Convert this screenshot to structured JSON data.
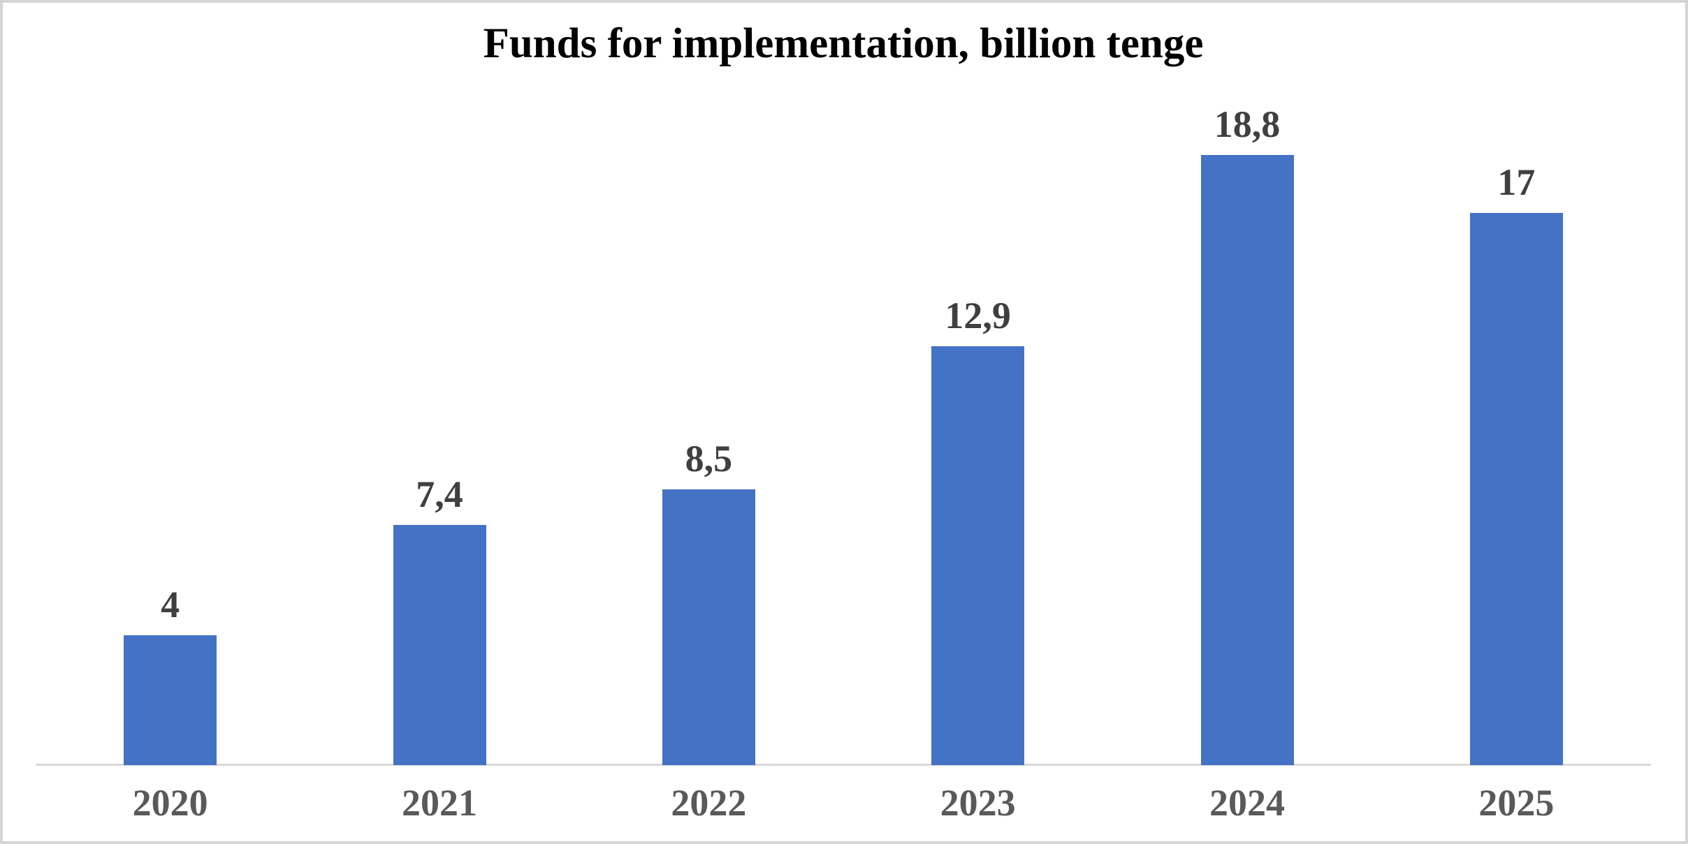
{
  "title": "Funds for implementation, billion tenge",
  "colors": {
    "bar": "#4472C4",
    "axis_line": "#D9D9D9",
    "frame_border": "#D5D5D5",
    "title_text": "#000000",
    "data_label_text": "#3F3F3F",
    "axis_label_text": "#595959",
    "background": "#FFFFFF"
  },
  "chart_data": {
    "type": "bar",
    "title": "Funds for implementation, billion tenge",
    "categories": [
      "2020",
      "2021",
      "2022",
      "2023",
      "2024",
      "2025"
    ],
    "values": [
      4,
      7.4,
      8.5,
      12.9,
      18.8,
      17
    ],
    "value_labels": [
      "4",
      "7,4",
      "8,5",
      "12,9",
      "18,8",
      "17"
    ],
    "xlabel": "",
    "ylabel": "",
    "ylim": [
      0,
      20
    ],
    "grid": false,
    "legend": false,
    "y_axis_visible": false,
    "data_labels_position": "above-bar",
    "bar_color": "#4472C4",
    "decimal_separator": ","
  }
}
